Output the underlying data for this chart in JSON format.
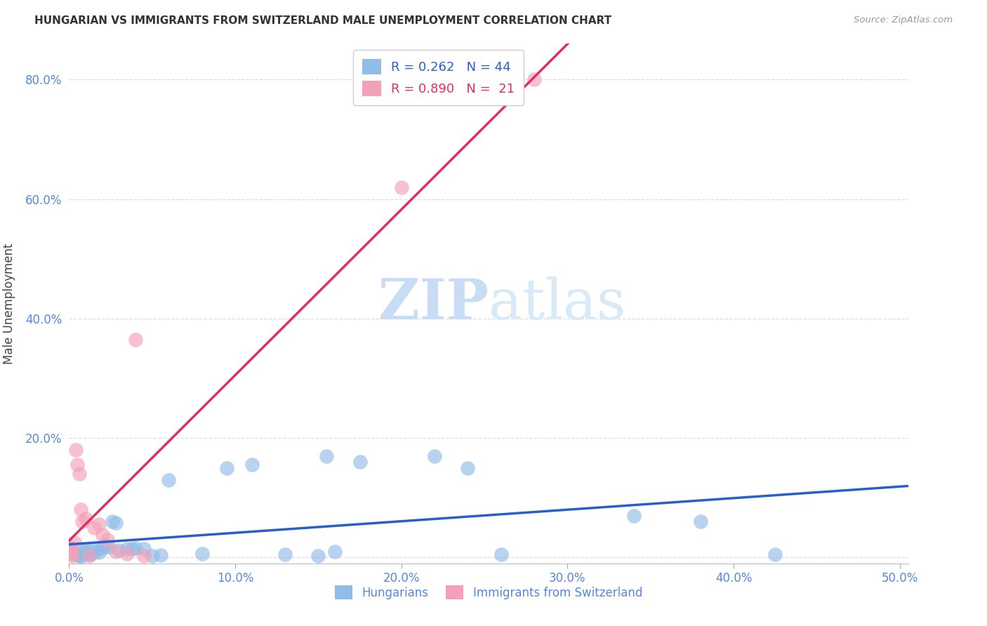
{
  "title": "HUNGARIAN VS IMMIGRANTS FROM SWITZERLAND MALE UNEMPLOYMENT CORRELATION CHART",
  "source": "Source: ZipAtlas.com",
  "ylabel": "Male Unemployment",
  "xlim": [
    0.0,
    0.505
  ],
  "ylim": [
    -0.01,
    0.86
  ],
  "xticks": [
    0.0,
    0.1,
    0.2,
    0.3,
    0.4,
    0.5
  ],
  "yticks": [
    0.0,
    0.2,
    0.4,
    0.6,
    0.8
  ],
  "ytick_labels": [
    "",
    "20.0%",
    "40.0%",
    "60.0%",
    "80.0%"
  ],
  "xtick_labels": [
    "0.0%",
    "10.0%",
    "20.0%",
    "30.0%",
    "40.0%",
    "50.0%"
  ],
  "legend_blue_r": "0.262",
  "legend_blue_n": "44",
  "legend_pink_r": "0.890",
  "legend_pink_n": "21",
  "legend_blue_label": "Hungarians",
  "legend_pink_label": "Immigrants from Switzerland",
  "blue_color": "#92bce8",
  "pink_color": "#f4a0b8",
  "blue_line_color": "#2860c8",
  "pink_line_color": "#e03060",
  "blue_scatter_x": [
    0.0,
    0.001,
    0.002,
    0.003,
    0.004,
    0.005,
    0.006,
    0.007,
    0.008,
    0.009,
    0.01,
    0.011,
    0.012,
    0.013,
    0.015,
    0.016,
    0.018,
    0.02,
    0.022,
    0.024,
    0.026,
    0.028,
    0.03,
    0.035,
    0.038,
    0.04,
    0.045,
    0.05,
    0.055,
    0.06,
    0.08,
    0.095,
    0.11,
    0.13,
    0.15,
    0.155,
    0.16,
    0.175,
    0.22,
    0.24,
    0.26,
    0.34,
    0.38,
    0.425
  ],
  "blue_scatter_y": [
    0.018,
    0.014,
    0.01,
    0.007,
    0.005,
    0.004,
    0.003,
    0.002,
    0.012,
    0.006,
    0.013,
    0.009,
    0.006,
    0.005,
    0.013,
    0.01,
    0.009,
    0.016,
    0.02,
    0.018,
    0.06,
    0.058,
    0.012,
    0.014,
    0.015,
    0.016,
    0.015,
    0.003,
    0.004,
    0.13,
    0.006,
    0.15,
    0.155,
    0.005,
    0.003,
    0.17,
    0.01,
    0.16,
    0.17,
    0.15,
    0.005,
    0.07,
    0.06,
    0.005
  ],
  "pink_scatter_x": [
    0.0,
    0.001,
    0.002,
    0.003,
    0.004,
    0.005,
    0.006,
    0.007,
    0.008,
    0.01,
    0.012,
    0.015,
    0.018,
    0.02,
    0.023,
    0.028,
    0.035,
    0.04,
    0.045,
    0.2,
    0.28
  ],
  "pink_scatter_y": [
    0.005,
    0.008,
    0.003,
    0.025,
    0.18,
    0.155,
    0.14,
    0.08,
    0.06,
    0.065,
    0.003,
    0.05,
    0.055,
    0.038,
    0.03,
    0.01,
    0.006,
    0.365,
    0.003,
    0.62,
    0.8
  ],
  "watermark_zip": "ZIP",
  "watermark_atlas": "atlas",
  "watermark_color": "#ddeeff",
  "background_color": "#ffffff",
  "grid_color": "#dddddd"
}
